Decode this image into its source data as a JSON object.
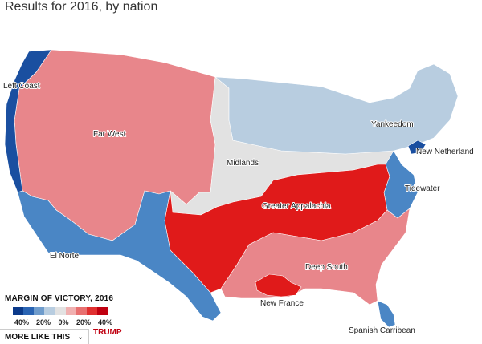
{
  "title": "Results for 2016, by nation",
  "regions": {
    "left_coast": "Left Coast",
    "far_west": "Far West",
    "el_norte": "El Norte",
    "midlands": "Midlands",
    "yankeedom": "Yankeedom",
    "new_netherland": "New Netherland",
    "tidewater": "Tidewater",
    "greater_appalachia": "Greater Appalachia",
    "deep_south": "Deep South",
    "new_france": "New France",
    "spanish_caribbean": "Spanish Carribean"
  },
  "colors": {
    "dem_strong": "#1a4fa0",
    "dem_mid": "#4a86c5",
    "dem_light": "#b8cde0",
    "neutral": "#e2e2e2",
    "rep_light": "#e8868b",
    "rep_strong": "#e01a1a"
  },
  "legend": {
    "title": "MARGIN OF VICTORY, 2016",
    "ticks": [
      "40%",
      "20%",
      "0%",
      "20%",
      "40%"
    ],
    "rep_label": "TRUMP",
    "swatches": [
      "#0b3a8a",
      "#2a64b3",
      "#6f9ccc",
      "#b8cde0",
      "#e2e2e2",
      "#f0b0b0",
      "#e87070",
      "#e03030",
      "#c00010"
    ]
  },
  "more_link": {
    "label": "MORE LIKE THIS",
    "icon": "chevron-down-icon"
  }
}
